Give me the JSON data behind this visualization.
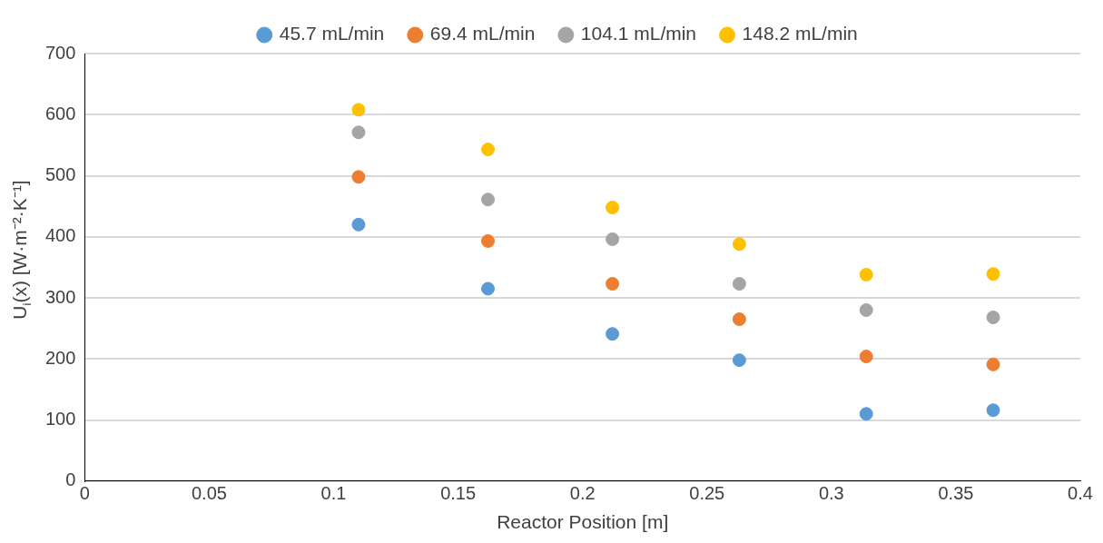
{
  "chart_data": {
    "type": "scatter",
    "xlabel": "Reactor Position [m]",
    "ylabel": "U$_{i}$(x) [W·m⁻²·K⁻¹]",
    "x": [
      0.11,
      0.162,
      0.212,
      0.263,
      0.314,
      0.365
    ],
    "series": [
      {
        "name": "45.7 mL/min",
        "color": "#5b9bd5",
        "values": [
          420,
          315,
          241,
          198,
          110,
          116
        ]
      },
      {
        "name": "69.4 mL/min",
        "color": "#ed7d31",
        "values": [
          498,
          393,
          323,
          265,
          204,
          191
        ]
      },
      {
        "name": "104.1 mL/min",
        "color": "#a5a5a5",
        "values": [
          571,
          461,
          396,
          323,
          280,
          268
        ]
      },
      {
        "name": "148.2 mL/min",
        "color": "#ffc000",
        "values": [
          608,
          543,
          448,
          388,
          338,
          339
        ]
      }
    ],
    "xlim": [
      0,
      0.4
    ],
    "xticks": [
      0,
      0.05,
      0.1,
      0.15,
      0.2,
      0.25,
      0.3,
      0.35,
      0.4
    ],
    "ylim": [
      0,
      700
    ],
    "yticks": [
      0,
      100,
      200,
      300,
      400,
      500,
      600,
      700
    ],
    "grid": "y",
    "legend": "top",
    "marker": "circle"
  }
}
